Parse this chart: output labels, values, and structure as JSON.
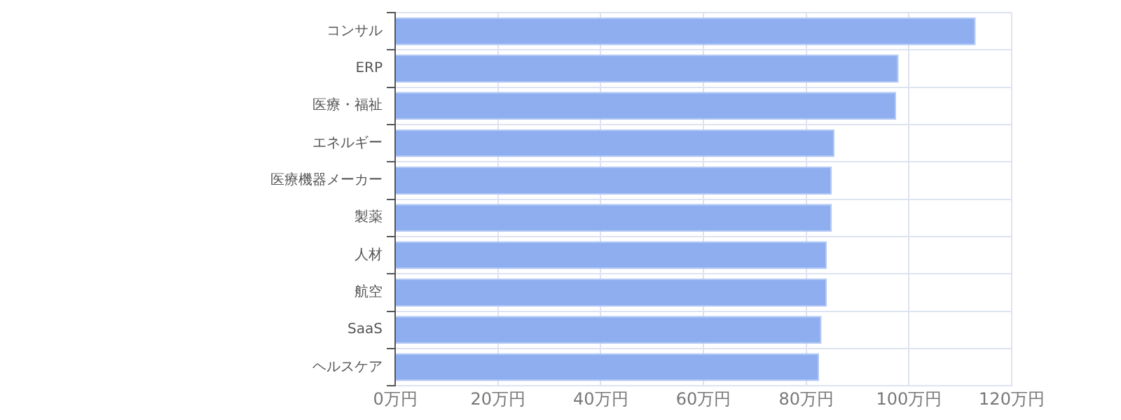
{
  "chart_data": {
    "type": "bar",
    "orientation": "horizontal",
    "categories": [
      "コンサル",
      "ERP",
      "医療・福祉",
      "エネルギー",
      "医療機器メーカー",
      "製薬",
      "人材",
      "航空",
      "SaaS",
      "ヘルスケア"
    ],
    "values": [
      113,
      98,
      97.5,
      85.5,
      85,
      85,
      84,
      84,
      83,
      82.5
    ],
    "color": "#8eaef0",
    "xlim": [
      0,
      120
    ],
    "xticks": [
      {
        "value": 0,
        "label": "0万円"
      },
      {
        "value": 20,
        "label": "20万円"
      },
      {
        "value": 40,
        "label": "40万円"
      },
      {
        "value": 60,
        "label": "60万円"
      },
      {
        "value": 80,
        "label": "80万円"
      },
      {
        "value": 100,
        "label": "100万円"
      },
      {
        "value": 120,
        "label": "120万円"
      }
    ],
    "grid": true
  }
}
